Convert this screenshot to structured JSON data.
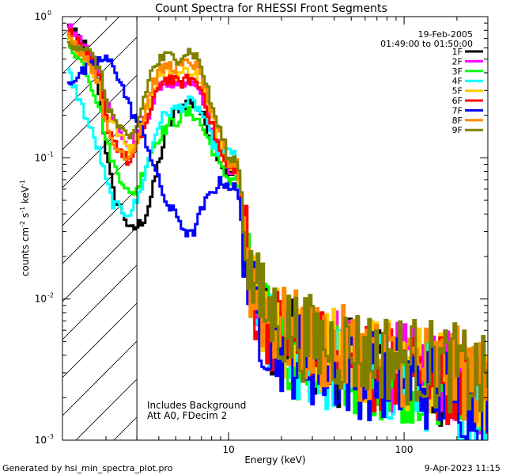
{
  "chart_data": {
    "type": "line",
    "title": "Count Spectra for RHESSI Front Segments",
    "xlabel": "Energy (keV)",
    "ylabel_parts": [
      "counts cm",
      "-2",
      " s",
      "-1",
      " keV",
      "-1"
    ],
    "x_scale": "log",
    "y_scale": "log",
    "xlim": [
      1.13,
      300
    ],
    "ylim": [
      0.001,
      1.0
    ],
    "x_tick_labels": [
      {
        "value": 10,
        "label": "10"
      },
      {
        "value": 100,
        "label": "100"
      }
    ],
    "y_tick_labels": [
      {
        "value": 1,
        "base": "10",
        "exp": "0"
      },
      {
        "value": 0.1,
        "base": "10",
        "exp": "-1"
      },
      {
        "value": 0.01,
        "base": "10",
        "exp": "-2"
      },
      {
        "value": 0.001,
        "base": "10",
        "exp": "-3"
      }
    ],
    "date": "19-Feb-2005",
    "time_range": "01:49:00 to 01:50:00",
    "background_note": "Includes Background",
    "attenuator_note": "Att A0, FDecim 2",
    "attenuator_cutoff_kev": 3.0,
    "series": [
      {
        "name": "1F",
        "color": "#000000",
        "offset": 0.0,
        "points": [
          [
            1.2,
            0.85
          ],
          [
            1.5,
            0.62
          ],
          [
            1.8,
            0.3
          ],
          [
            2.0,
            0.1
          ],
          [
            2.2,
            0.052
          ],
          [
            2.5,
            0.04
          ],
          [
            2.7,
            0.03
          ],
          [
            3.0,
            0.033
          ],
          [
            3.3,
            0.038
          ],
          [
            3.6,
            0.055
          ],
          [
            4.0,
            0.1
          ],
          [
            4.5,
            0.17
          ],
          [
            5.0,
            0.22
          ],
          [
            5.5,
            0.24
          ],
          [
            6.0,
            0.25
          ],
          [
            6.5,
            0.23
          ],
          [
            7.0,
            0.2
          ],
          [
            8.0,
            0.13
          ],
          [
            9.0,
            0.09
          ],
          [
            10.0,
            0.075
          ],
          [
            11.0,
            0.08
          ],
          [
            12.0,
            0.035
          ],
          [
            13.0,
            0.012
          ],
          [
            15.0,
            0.0075
          ],
          [
            20.0,
            0.005
          ],
          [
            30.0,
            0.004
          ],
          [
            50.0,
            0.0034
          ],
          [
            100.0,
            0.003
          ],
          [
            200.0,
            0.0025
          ],
          [
            290.0,
            0.002
          ]
        ]
      },
      {
        "name": "2F",
        "color": "#ff00ff",
        "offset": 0.04,
        "points": [
          [
            1.2,
            0.8
          ],
          [
            1.5,
            0.6
          ],
          [
            1.8,
            0.4
          ],
          [
            2.0,
            0.25
          ],
          [
            2.2,
            0.17
          ],
          [
            2.5,
            0.13
          ],
          [
            2.7,
            0.11
          ],
          [
            3.0,
            0.14
          ],
          [
            3.3,
            0.18
          ],
          [
            3.6,
            0.22
          ],
          [
            4.0,
            0.32
          ],
          [
            4.5,
            0.33
          ],
          [
            5.0,
            0.3
          ],
          [
            5.5,
            0.31
          ],
          [
            6.0,
            0.33
          ],
          [
            6.5,
            0.3
          ],
          [
            7.0,
            0.26
          ],
          [
            8.0,
            0.15
          ],
          [
            9.0,
            0.1
          ],
          [
            10.0,
            0.078
          ],
          [
            11.0,
            0.085
          ],
          [
            12.0,
            0.036
          ],
          [
            13.0,
            0.013
          ],
          [
            15.0,
            0.0078
          ],
          [
            20.0,
            0.0052
          ],
          [
            30.0,
            0.0041
          ],
          [
            50.0,
            0.0035
          ],
          [
            100.0,
            0.0031
          ],
          [
            200.0,
            0.0026
          ],
          [
            290.0,
            0.0021
          ]
        ]
      },
      {
        "name": "3F",
        "color": "#00ff00",
        "offset": -0.04,
        "points": [
          [
            1.2,
            0.7
          ],
          [
            1.5,
            0.45
          ],
          [
            1.8,
            0.25
          ],
          [
            2.0,
            0.13
          ],
          [
            2.2,
            0.09
          ],
          [
            2.5,
            0.07
          ],
          [
            2.7,
            0.055
          ],
          [
            3.0,
            0.065
          ],
          [
            3.3,
            0.09
          ],
          [
            3.6,
            0.12
          ],
          [
            4.0,
            0.15
          ],
          [
            4.5,
            0.18
          ],
          [
            5.0,
            0.19
          ],
          [
            5.5,
            0.21
          ],
          [
            6.0,
            0.22
          ],
          [
            6.5,
            0.2
          ],
          [
            7.0,
            0.17
          ],
          [
            8.0,
            0.12
          ],
          [
            9.0,
            0.085
          ],
          [
            10.0,
            0.072
          ],
          [
            11.0,
            0.078
          ],
          [
            12.0,
            0.034
          ],
          [
            13.0,
            0.012
          ],
          [
            15.0,
            0.0072
          ],
          [
            20.0,
            0.0048
          ],
          [
            30.0,
            0.0038
          ],
          [
            50.0,
            0.0033
          ],
          [
            100.0,
            0.0029
          ],
          [
            200.0,
            0.0024
          ],
          [
            290.0,
            0.0019
          ]
        ]
      },
      {
        "name": "4F",
        "color": "#00ffff",
        "offset": -0.08,
        "points": [
          [
            1.2,
            0.45
          ],
          [
            1.5,
            0.22
          ],
          [
            1.8,
            0.12
          ],
          [
            2.0,
            0.07
          ],
          [
            2.2,
            0.05
          ],
          [
            2.5,
            0.045
          ],
          [
            2.7,
            0.045
          ],
          [
            3.0,
            0.055
          ],
          [
            3.3,
            0.085
          ],
          [
            3.6,
            0.13
          ],
          [
            4.0,
            0.2
          ],
          [
            4.5,
            0.23
          ],
          [
            5.0,
            0.24
          ],
          [
            5.5,
            0.26
          ],
          [
            6.0,
            0.27
          ],
          [
            6.5,
            0.25
          ],
          [
            7.0,
            0.22
          ],
          [
            8.0,
            0.14
          ],
          [
            9.0,
            0.11
          ],
          [
            10.0,
            0.13
          ],
          [
            11.0,
            0.1
          ],
          [
            12.0,
            0.036
          ],
          [
            13.0,
            0.012
          ],
          [
            15.0,
            0.007
          ],
          [
            20.0,
            0.0046
          ],
          [
            30.0,
            0.0037
          ],
          [
            50.0,
            0.0032
          ],
          [
            100.0,
            0.0028
          ],
          [
            200.0,
            0.0023
          ],
          [
            290.0,
            0.0018
          ]
        ]
      },
      {
        "name": "5F",
        "color": "#ffcc00",
        "offset": 0.06,
        "points": [
          [
            1.2,
            0.7
          ],
          [
            1.5,
            0.48
          ],
          [
            1.8,
            0.33
          ],
          [
            2.0,
            0.2
          ],
          [
            2.2,
            0.16
          ],
          [
            2.5,
            0.12
          ],
          [
            2.7,
            0.11
          ],
          [
            3.0,
            0.13
          ],
          [
            3.3,
            0.2
          ],
          [
            3.6,
            0.26
          ],
          [
            4.0,
            0.38
          ],
          [
            4.5,
            0.4
          ],
          [
            5.0,
            0.37
          ],
          [
            5.5,
            0.38
          ],
          [
            6.0,
            0.4
          ],
          [
            6.5,
            0.36
          ],
          [
            7.0,
            0.3
          ],
          [
            8.0,
            0.17
          ],
          [
            9.0,
            0.11
          ],
          [
            10.0,
            0.08
          ],
          [
            11.0,
            0.088
          ],
          [
            12.0,
            0.037
          ],
          [
            13.0,
            0.013
          ],
          [
            15.0,
            0.008
          ],
          [
            20.0,
            0.0054
          ],
          [
            30.0,
            0.0043
          ],
          [
            50.0,
            0.0036
          ],
          [
            100.0,
            0.0032
          ],
          [
            200.0,
            0.0027
          ],
          [
            290.0,
            0.0021
          ]
        ]
      },
      {
        "name": "6F",
        "color": "#ff0000",
        "offset": 0.02,
        "points": [
          [
            1.2,
            0.78
          ],
          [
            1.5,
            0.55
          ],
          [
            1.8,
            0.35
          ],
          [
            2.0,
            0.17
          ],
          [
            2.2,
            0.13
          ],
          [
            2.5,
            0.1
          ],
          [
            2.7,
            0.09
          ],
          [
            3.0,
            0.12
          ],
          [
            3.3,
            0.17
          ],
          [
            3.6,
            0.22
          ],
          [
            4.0,
            0.34
          ],
          [
            4.5,
            0.36
          ],
          [
            5.0,
            0.33
          ],
          [
            5.5,
            0.34
          ],
          [
            6.0,
            0.36
          ],
          [
            6.5,
            0.33
          ],
          [
            7.0,
            0.29
          ],
          [
            8.0,
            0.16
          ],
          [
            9.0,
            0.1
          ],
          [
            10.0,
            0.079
          ],
          [
            11.0,
            0.086
          ],
          [
            12.0,
            0.036
          ],
          [
            13.0,
            0.013
          ],
          [
            15.0,
            0.0079
          ],
          [
            20.0,
            0.0053
          ],
          [
            30.0,
            0.0042
          ],
          [
            50.0,
            0.0035
          ],
          [
            100.0,
            0.0031
          ],
          [
            200.0,
            0.0026
          ],
          [
            290.0,
            0.0021
          ]
        ]
      },
      {
        "name": "7F",
        "color": "#0000ff",
        "offset": -0.02,
        "points": [
          [
            1.2,
            0.35
          ],
          [
            1.5,
            0.42
          ],
          [
            1.8,
            0.5
          ],
          [
            2.0,
            0.5
          ],
          [
            2.2,
            0.46
          ],
          [
            2.5,
            0.3
          ],
          [
            2.7,
            0.23
          ],
          [
            3.0,
            0.18
          ],
          [
            3.3,
            0.14
          ],
          [
            3.6,
            0.1
          ],
          [
            4.0,
            0.065
          ],
          [
            4.5,
            0.045
          ],
          [
            5.0,
            0.04
          ],
          [
            5.5,
            0.032
          ],
          [
            6.0,
            0.028
          ],
          [
            6.5,
            0.035
          ],
          [
            7.0,
            0.045
          ],
          [
            8.0,
            0.06
          ],
          [
            9.0,
            0.07
          ],
          [
            10.0,
            0.065
          ],
          [
            11.0,
            0.06
          ],
          [
            12.0,
            0.03
          ],
          [
            13.0,
            0.011
          ],
          [
            15.0,
            0.0068
          ],
          [
            20.0,
            0.0046
          ],
          [
            30.0,
            0.0036
          ],
          [
            50.0,
            0.0031
          ],
          [
            100.0,
            0.0027
          ],
          [
            200.0,
            0.0022
          ],
          [
            290.0,
            0.0018
          ]
        ]
      },
      {
        "name": "8F",
        "color": "#ff8800",
        "offset": 0.08,
        "points": [
          [
            1.2,
            0.65
          ],
          [
            1.5,
            0.5
          ],
          [
            1.8,
            0.32
          ],
          [
            2.0,
            0.14
          ],
          [
            2.2,
            0.11
          ],
          [
            2.5,
            0.1
          ],
          [
            2.7,
            0.095
          ],
          [
            3.0,
            0.13
          ],
          [
            3.3,
            0.2
          ],
          [
            3.6,
            0.3
          ],
          [
            4.0,
            0.38
          ],
          [
            4.5,
            0.42
          ],
          [
            5.0,
            0.4
          ],
          [
            5.5,
            0.42
          ],
          [
            6.0,
            0.45
          ],
          [
            6.5,
            0.4
          ],
          [
            7.0,
            0.33
          ],
          [
            8.0,
            0.18
          ],
          [
            9.0,
            0.12
          ],
          [
            10.0,
            0.082
          ],
          [
            11.0,
            0.09
          ],
          [
            12.0,
            0.038
          ],
          [
            13.0,
            0.013
          ],
          [
            15.0,
            0.0082
          ],
          [
            20.0,
            0.0056
          ],
          [
            30.0,
            0.0045
          ],
          [
            50.0,
            0.0038
          ],
          [
            100.0,
            0.0033
          ],
          [
            200.0,
            0.0028
          ],
          [
            290.0,
            0.0022
          ]
        ]
      },
      {
        "name": "9F",
        "color": "#808000",
        "offset": 0.1,
        "points": [
          [
            1.2,
            0.6
          ],
          [
            1.5,
            0.55
          ],
          [
            1.8,
            0.4
          ],
          [
            2.0,
            0.22
          ],
          [
            2.2,
            0.17
          ],
          [
            2.5,
            0.13
          ],
          [
            2.7,
            0.12
          ],
          [
            3.0,
            0.16
          ],
          [
            3.3,
            0.26
          ],
          [
            3.6,
            0.38
          ],
          [
            4.0,
            0.45
          ],
          [
            4.5,
            0.48
          ],
          [
            5.0,
            0.46
          ],
          [
            5.5,
            0.5
          ],
          [
            6.0,
            0.52
          ],
          [
            6.5,
            0.47
          ],
          [
            7.0,
            0.38
          ],
          [
            8.0,
            0.2
          ],
          [
            9.0,
            0.13
          ],
          [
            10.0,
            0.085
          ],
          [
            11.0,
            0.093
          ],
          [
            12.0,
            0.039
          ],
          [
            13.0,
            0.014
          ],
          [
            15.0,
            0.0085
          ],
          [
            20.0,
            0.0058
          ],
          [
            30.0,
            0.0046
          ],
          [
            50.0,
            0.0039
          ],
          [
            100.0,
            0.0034
          ],
          [
            200.0,
            0.0029
          ],
          [
            290.0,
            0.0023
          ]
        ]
      }
    ]
  },
  "footer": {
    "left": "Generated by hsi_min_spectra_plot.pro",
    "right": "9-Apr-2023 11:15"
  }
}
